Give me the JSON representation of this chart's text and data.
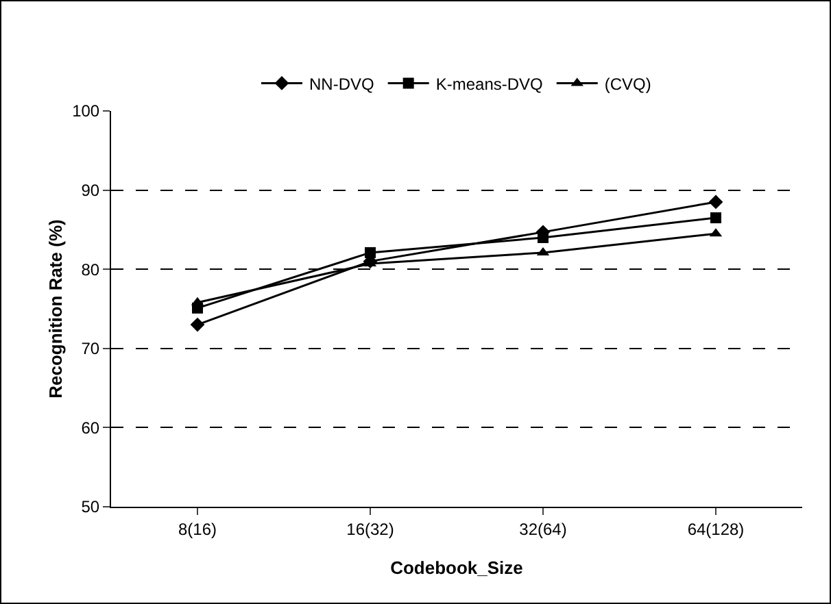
{
  "chart_data": {
    "type": "line",
    "xlabel": "Codebook_Size",
    "ylabel": "Recognition Rate (%)",
    "categories": [
      "8(16)",
      "16(32)",
      "32(64)",
      "64(128)"
    ],
    "series": [
      {
        "name": "NN-DVQ",
        "color": "#000000",
        "marker": "diamond",
        "values": [
          73,
          81,
          84.7,
          88.5
        ]
      },
      {
        "name": "K-means-DVQ",
        "color": "#000000",
        "marker": "square",
        "values": [
          75.1,
          82.1,
          84,
          86.5
        ]
      },
      {
        "name": "(CVQ)",
        "color": "#000000",
        "marker": "triangle",
        "values": [
          75.8,
          80.7,
          82.1,
          84.5
        ]
      }
    ],
    "ylim": [
      50,
      100
    ],
    "yticks": [
      50,
      60,
      70,
      80,
      90,
      100
    ],
    "grid": "y",
    "legend": "top",
    "line_style": "solid"
  }
}
